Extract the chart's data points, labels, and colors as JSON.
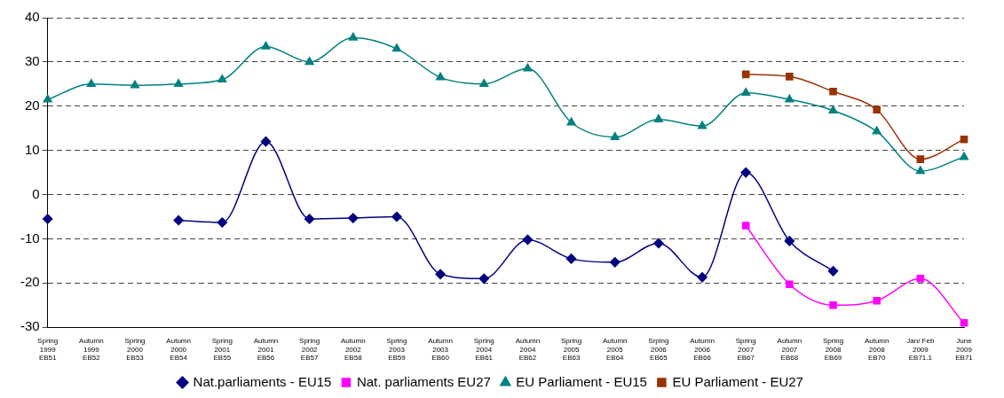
{
  "chart_data": {
    "type": "line",
    "categories": [
      "Spring\n1999\nEB51",
      "Autumn\n1999\nEB52",
      "Spring\n2000\nEB53",
      "Autumn\n2000\nEB54",
      "Spring\n2001\nEB55",
      "Autumn\n2001\nEB56",
      "Spring\n2002\nEB57",
      "Autumn\n2002\nEB58",
      "Spring\n2003\nEB59",
      "Autumn\n2003\nEB60",
      "Spring\n2004\nEB61",
      "Autumn\n2004\nEB62",
      "Spring\n2005\nEB63",
      "Autumn\n2005\nEB64",
      "Srping\n2006\nEB65",
      "Autumn\n2006\nEB66",
      "Spring\n2007\nEB67",
      "Autumn\n2007\nEB68",
      "Spring\n2008\nEB69",
      "Autumn\n2008\nEB70",
      "Jan/ Feb\n2009\nEB71.1",
      "June\n2009\nEB71"
    ],
    "series": [
      {
        "name": "Nat.parliaments - EU15",
        "color": "#000080",
        "marker": "diamond",
        "values": [
          -5.5,
          null,
          null,
          -5.8,
          -6.3,
          12,
          -5.5,
          -5.3,
          -5,
          -18,
          -19,
          -10.2,
          -14.5,
          -15.3,
          -11,
          -18.7,
          5,
          -10.5,
          -17.3,
          null,
          null,
          null
        ]
      },
      {
        "name": "Nat. parliaments EU27",
        "color": "#ff00ff",
        "marker": "square",
        "values": [
          null,
          null,
          null,
          null,
          null,
          null,
          null,
          null,
          null,
          null,
          null,
          null,
          null,
          null,
          null,
          null,
          -7,
          -20.3,
          -25,
          -24,
          -19,
          -29
        ]
      },
      {
        "name": "EU Parliament - EU15",
        "color": "#008080",
        "marker": "triangle",
        "values": [
          21.5,
          25,
          24.7,
          25,
          26,
          33.5,
          30,
          35.5,
          33,
          26.5,
          25,
          28.5,
          16.3,
          13,
          17,
          15.5,
          23,
          21.5,
          19,
          14.3,
          5.3,
          8.5
        ]
      },
      {
        "name": "EU Parliament - EU27",
        "color": "#993300",
        "marker": "square",
        "values": [
          null,
          null,
          null,
          null,
          null,
          null,
          null,
          null,
          null,
          null,
          null,
          null,
          null,
          null,
          null,
          null,
          27.2,
          26.7,
          23.3,
          19.2,
          8,
          12.5
        ]
      }
    ],
    "ylim": [
      -30,
      40
    ],
    "yticks": [
      -30,
      -20,
      -10,
      0,
      10,
      20,
      30,
      40
    ],
    "grid": "y",
    "legend": "bottom"
  }
}
